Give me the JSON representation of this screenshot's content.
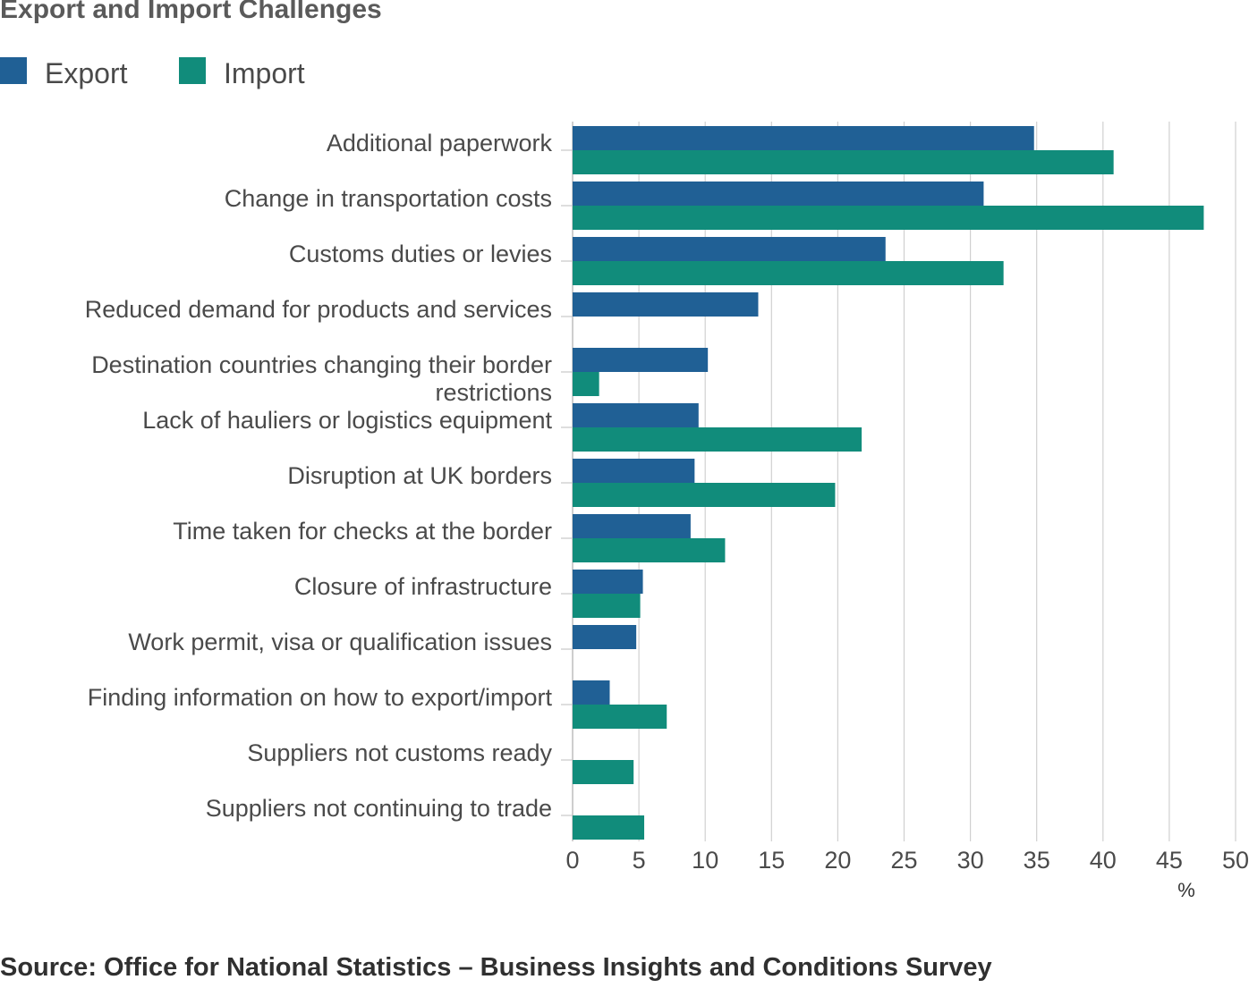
{
  "title": "Export and Import Challenges",
  "source": "Source: Office for National Statistics – Business Insights and Conditions Survey",
  "colors": {
    "export": "#206095",
    "import": "#118c7b",
    "grid": "#d0d0d0",
    "text": "#4a4a4a"
  },
  "chart_data": {
    "type": "bar",
    "orientation": "horizontal",
    "title": "Export and Import Challenges",
    "xlabel": "%",
    "xlim": [
      0,
      50
    ],
    "xticks": [
      0,
      5,
      10,
      15,
      20,
      25,
      30,
      35,
      40,
      45,
      50
    ],
    "grid": true,
    "legend_position": "top-left",
    "categories": [
      "Additional paperwork",
      "Change in transportation costs",
      "Customs duties or levies",
      "Reduced demand for products and services",
      [
        "Destination countries changing their border",
        "restrictions"
      ],
      "Lack of hauliers or logistics equipment",
      "Disruption at UK borders",
      "Time taken for checks at the border",
      "Closure of infrastructure",
      "Work permit, visa or qualification issues",
      "Finding information on how to export/import",
      "Suppliers not customs ready",
      "Suppliers not continuing to trade"
    ],
    "series": [
      {
        "name": "Export",
        "color": "#206095",
        "values": [
          34.8,
          31.0,
          23.6,
          14.0,
          10.2,
          9.5,
          9.2,
          8.9,
          5.3,
          4.8,
          2.8,
          null,
          null
        ]
      },
      {
        "name": "Import",
        "color": "#118c7b",
        "values": [
          40.8,
          47.6,
          32.5,
          null,
          2.0,
          21.8,
          19.8,
          11.5,
          5.1,
          null,
          7.1,
          4.6,
          5.4
        ]
      }
    ]
  }
}
